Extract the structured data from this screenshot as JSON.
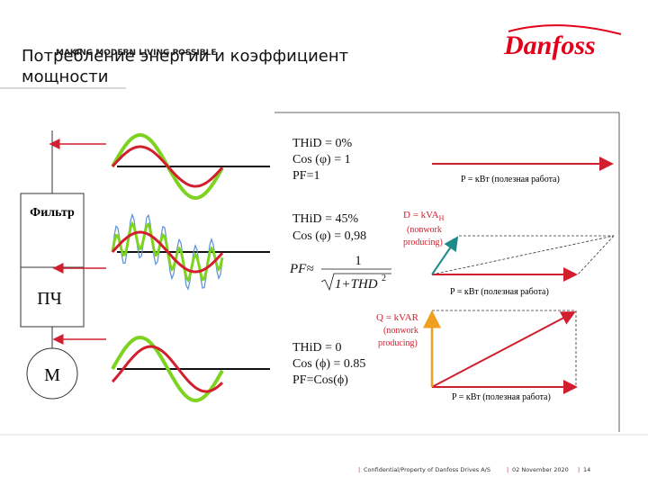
{
  "header": {
    "tagline": "MAKING MODERN LIVING POSSIBLE",
    "logo": "Danfoss"
  },
  "title": "Потребление энергии и коэффициент мощности",
  "diagram": {
    "filter": "Фильтр",
    "drive": "ПЧ",
    "motor": "M"
  },
  "blocks": [
    {
      "lines": [
        "THiD = 0%",
        "Cos (φ) = 1",
        "PF=1"
      ],
      "p_label": "P = кВт (полезная работа)"
    },
    {
      "lines": [
        "THiD = 45%",
        "Cos (φ) = 0,98"
      ],
      "formula": {
        "lhs": "PF≈",
        "numerator": "1",
        "radicand": "1+THD",
        "exponent": "2"
      },
      "d_label": "D = kVA",
      "d_sub": "H",
      "d_note": [
        "(nonwork",
        "producing)"
      ],
      "p_label": "P = кВт (полезная работа)"
    },
    {
      "lines": [
        "THiD = 0",
        "Cos (ϕ) = 0.85",
        "PF=Cos(ϕ)"
      ],
      "q_label": "Q = kVAR",
      "q_note": [
        "(nonwork",
        "producing)"
      ],
      "p_label": "P = кВт (полезная работа)"
    }
  ],
  "footer": {
    "confidential": "Confidential/Property of Danfoss Drives A/S",
    "date": "02 November 2020",
    "page": "14"
  }
}
